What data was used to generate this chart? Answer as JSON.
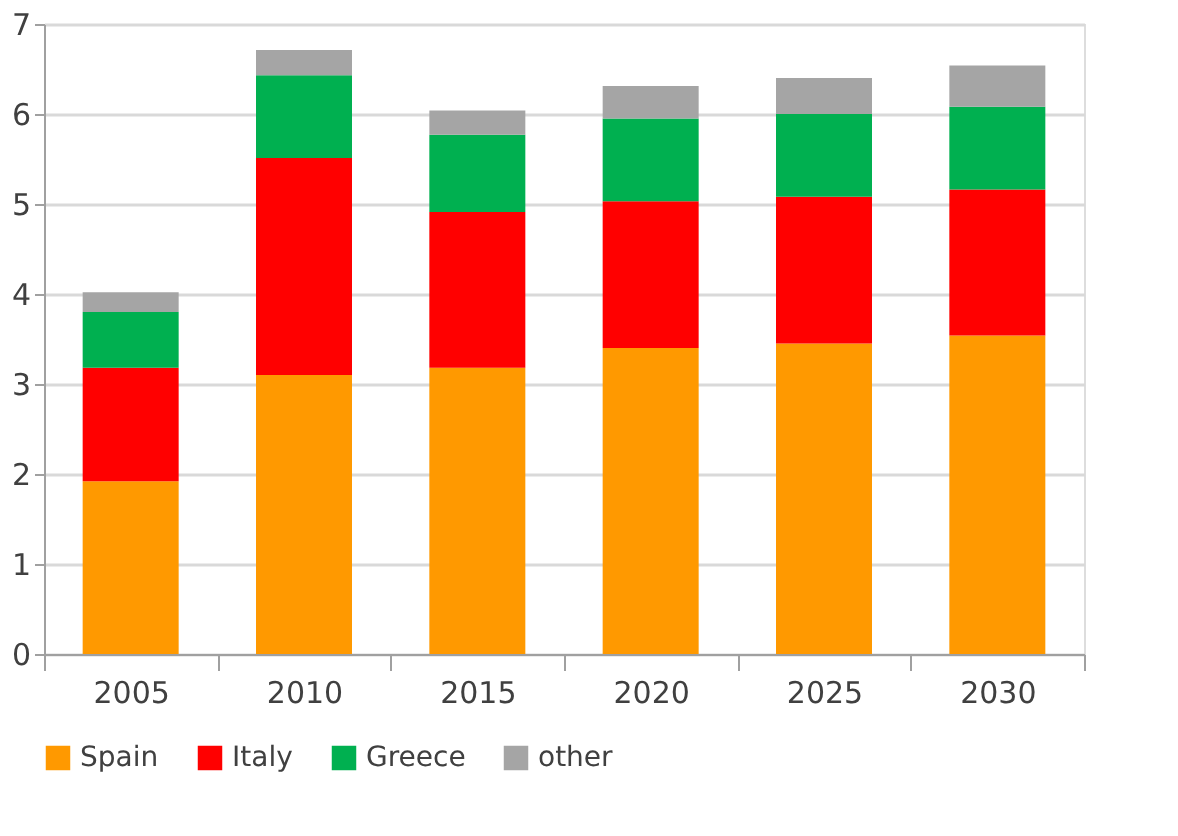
{
  "chart_data": {
    "type": "bar",
    "stacked": true,
    "categories": [
      "2005",
      "2010",
      "2015",
      "2020",
      "2025",
      "2030"
    ],
    "series": [
      {
        "name": "Spain",
        "color": "#ff9900",
        "values": [
          1.92,
          3.1,
          3.18,
          3.4,
          3.45,
          3.54
        ]
      },
      {
        "name": "Italy",
        "color": "#ff0000",
        "values": [
          1.26,
          2.41,
          1.73,
          1.63,
          1.63,
          1.62
        ]
      },
      {
        "name": "Greece",
        "color": "#00b050",
        "values": [
          0.62,
          0.92,
          0.86,
          0.92,
          0.92,
          0.92
        ]
      },
      {
        "name": "other",
        "color": "#a5a5a5",
        "values": [
          0.22,
          0.28,
          0.27,
          0.36,
          0.4,
          0.46
        ]
      }
    ],
    "ylim": [
      0,
      7
    ],
    "yticks": [
      0,
      1,
      2,
      3,
      4,
      5,
      6,
      7
    ],
    "grid": "y",
    "legend": "bottom"
  }
}
